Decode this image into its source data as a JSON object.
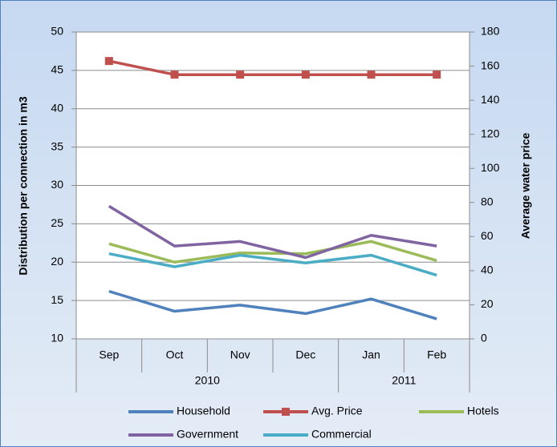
{
  "chart_data": {
    "type": "line",
    "categories": [
      "Sep",
      "Oct",
      "Nov",
      "Dec",
      "Jan",
      "Feb"
    ],
    "x_groups": [
      {
        "label": "2010",
        "size": 4
      },
      {
        "label": "2011",
        "size": 2
      }
    ],
    "ylabel": "Distribution per connection in m3",
    "y2label": "Average water price",
    "ylim": [
      10,
      50
    ],
    "yticks": [
      10,
      15,
      20,
      25,
      30,
      35,
      40,
      45,
      50
    ],
    "y2lim": [
      0,
      180
    ],
    "y2ticks": [
      0,
      20,
      40,
      60,
      80,
      100,
      120,
      140,
      160,
      180
    ],
    "grid": true,
    "legend": "bottom",
    "series": [
      {
        "name": "Household",
        "color": "#4f81bd",
        "values": [
          16.2,
          13.6,
          14.4,
          13.3,
          15.2,
          12.6
        ]
      },
      {
        "name": "Avg. Price",
        "color": "#c0504d",
        "axis": "y2",
        "marker": "square",
        "values": [
          163,
          155,
          155,
          155,
          155,
          155
        ]
      },
      {
        "name": "Hotels",
        "color": "#9bbb59",
        "values": [
          22.4,
          20.0,
          21.2,
          21.1,
          22.7,
          20.2
        ]
      },
      {
        "name": "Government",
        "color": "#8064a2",
        "values": [
          27.3,
          22.1,
          22.7,
          20.6,
          23.5,
          22.1
        ]
      },
      {
        "name": "Commercial",
        "color": "#4bacc6",
        "values": [
          21.1,
          19.4,
          20.9,
          19.9,
          20.9,
          18.3
        ]
      }
    ]
  }
}
